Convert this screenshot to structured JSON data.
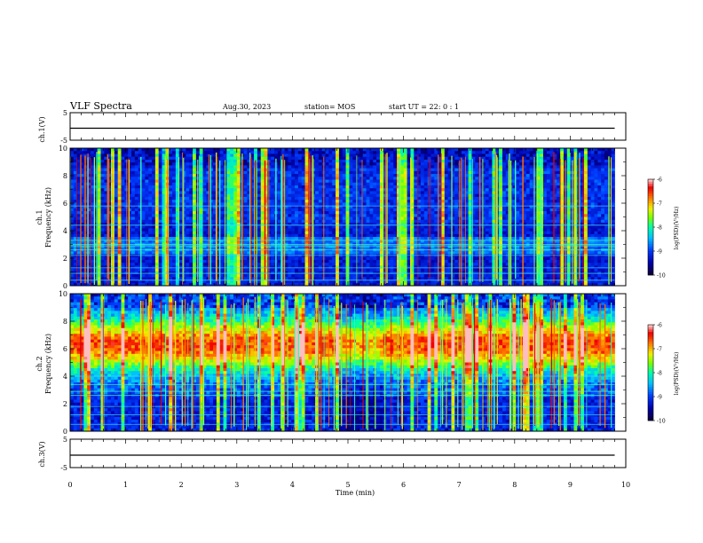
{
  "header": {
    "title": "VLF Spectra",
    "date": "Aug.30, 2023",
    "station": "station= MOS",
    "start_ut": "start UT =   22: 0  : 1"
  },
  "chart_data": [
    {
      "type": "line",
      "panel": "ch1-waveform",
      "ylabel": "ch.1(V)",
      "ylim": [
        -5,
        5
      ],
      "yticks": [
        5,
        -5
      ],
      "x": [
        0,
        9.8
      ],
      "values": [
        0,
        0
      ],
      "xlim": [
        0,
        10
      ]
    },
    {
      "type": "heatmap",
      "panel": "ch1-spectrogram",
      "ylabel_line1": "ch.1",
      "ylabel_line2": "Frequency (kHz)",
      "ylim": [
        0,
        10
      ],
      "yticks": [
        0,
        2,
        4,
        6,
        8,
        10
      ],
      "xlim": [
        0,
        10
      ],
      "data_xmax": 9.8,
      "colorbar": {
        "label": "log(PSD)(V²/Hz)",
        "range": [
          -10,
          -6
        ],
        "ticks": [
          "-6",
          "-7",
          "-8",
          "-9",
          "-10"
        ]
      }
    },
    {
      "type": "heatmap",
      "panel": "ch2-spectrogram",
      "ylabel_line1": "ch.2",
      "ylabel_line2": "Frequency (kHz)",
      "ylim": [
        0,
        10
      ],
      "yticks": [
        0,
        2,
        4,
        6,
        8,
        10
      ],
      "xlim": [
        0,
        10
      ],
      "data_xmax": 9.8,
      "colorbar": {
        "label": "log(PSD)(V²/Hz)",
        "range": [
          -10,
          -6
        ],
        "ticks": [
          "-6",
          "-7",
          "-8",
          "-9",
          "-10"
        ]
      }
    },
    {
      "type": "line",
      "panel": "ch3-waveform",
      "ylabel": "ch.3(V)",
      "ylim": [
        -5,
        5
      ],
      "yticks": [
        5,
        -5
      ],
      "x": [
        0,
        9.8
      ],
      "values": [
        0,
        0
      ],
      "xlim": [
        0,
        10
      ]
    }
  ],
  "xaxis": {
    "label": "Time  (min)",
    "ticks": [
      "0",
      "1",
      "2",
      "3",
      "4",
      "5",
      "6",
      "7",
      "8",
      "9",
      "10"
    ]
  }
}
